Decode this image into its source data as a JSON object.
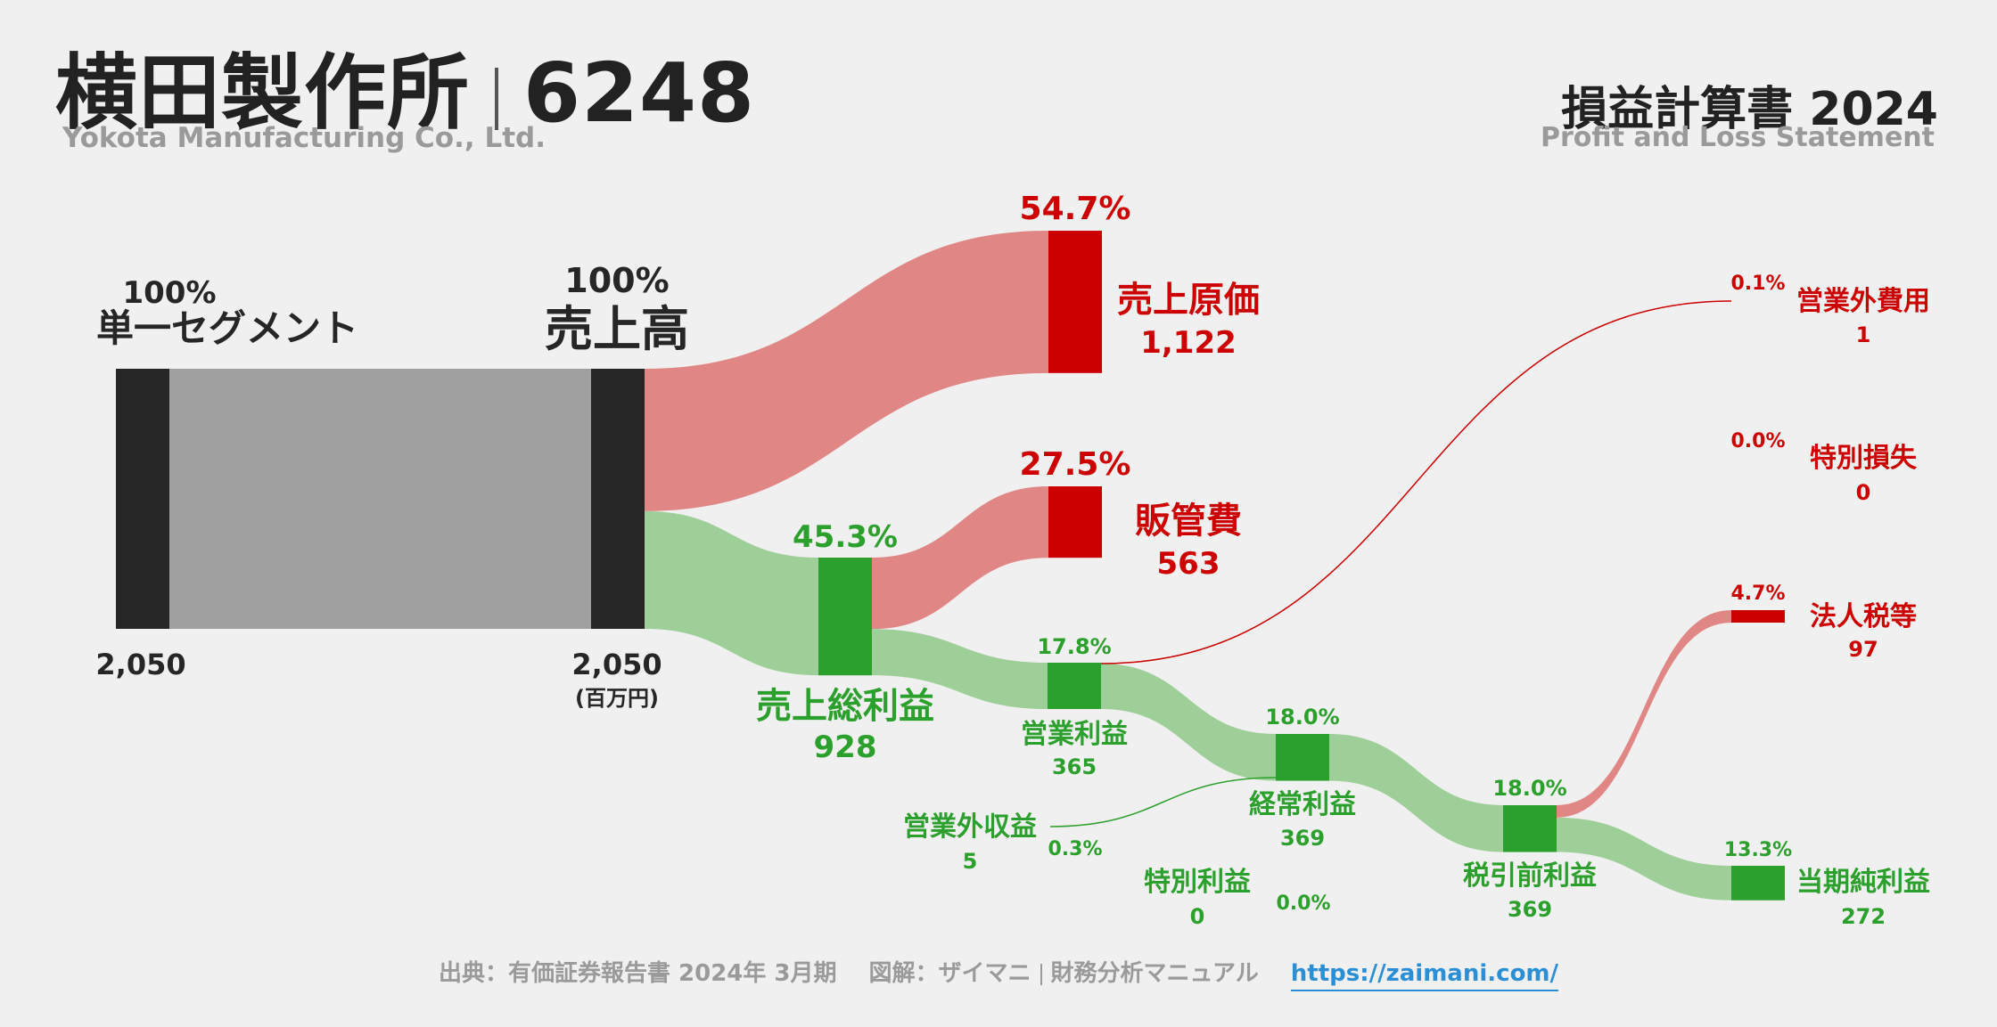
{
  "header": {
    "company_ja": "横田製作所",
    "ticker": "6248",
    "company_en": "Yokota Manufacturing Co., Ltd.",
    "statement_ja": "損益計算書 2024",
    "statement_en": "Profit and Loss Statement"
  },
  "footer": {
    "source": "出典：有価証券報告書 2024年 3月期",
    "credit_a": "図解：ザイマニ",
    "credit_b": "財務分析マニュアル",
    "url": "https://zaimani.com/"
  },
  "colors": {
    "revenue": "#262626",
    "segment_flow": "#a0a0a0",
    "cost": "#cc0000",
    "cost_flow": "#e08684",
    "profit": "#2ca02c",
    "profit_flow": "#9ecf98",
    "background": "#f0f0f0"
  },
  "chart_data": {
    "type": "sankey",
    "unit": "(百万円)",
    "nodes": [
      {
        "id": "segment",
        "label": "単一セグメント",
        "value": 2050,
        "value_text": "2,050",
        "pct": "100%",
        "kind": "revenue"
      },
      {
        "id": "revenue",
        "label": "売上高",
        "value": 2050,
        "value_text": "2,050",
        "pct": "100%",
        "kind": "revenue"
      },
      {
        "id": "cogs",
        "label": "売上原価",
        "value": 1122,
        "value_text": "1,122",
        "pct": "54.7%",
        "kind": "cost"
      },
      {
        "id": "gross",
        "label": "売上総利益",
        "value": 928,
        "value_text": "928",
        "pct": "45.3%",
        "kind": "profit"
      },
      {
        "id": "sga",
        "label": "販管費",
        "value": 563,
        "value_text": "563",
        "pct": "27.5%",
        "kind": "cost"
      },
      {
        "id": "op",
        "label": "営業利益",
        "value": 365,
        "value_text": "365",
        "pct": "17.8%",
        "kind": "profit"
      },
      {
        "id": "nonop_inc",
        "label": "営業外収益",
        "value": 5,
        "value_text": "5",
        "pct": "0.3%",
        "kind": "profit"
      },
      {
        "id": "nonop_exp",
        "label": "営業外費用",
        "value": 1,
        "value_text": "1",
        "pct": "0.1%",
        "kind": "cost"
      },
      {
        "id": "ordinary",
        "label": "経常利益",
        "value": 369,
        "value_text": "369",
        "pct": "18.0%",
        "kind": "profit"
      },
      {
        "id": "ext_inc",
        "label": "特別利益",
        "value": 0,
        "value_text": "0",
        "pct": "0.0%",
        "kind": "profit"
      },
      {
        "id": "ext_loss",
        "label": "特別損失",
        "value": 0,
        "value_text": "0",
        "pct": "0.0%",
        "kind": "cost"
      },
      {
        "id": "pretax",
        "label": "税引前利益",
        "value": 369,
        "value_text": "369",
        "pct": "18.0%",
        "kind": "profit"
      },
      {
        "id": "tax",
        "label": "法人税等",
        "value": 97,
        "value_text": "97",
        "pct": "4.7%",
        "kind": "cost"
      },
      {
        "id": "net",
        "label": "当期純利益",
        "value": 272,
        "value_text": "272",
        "pct": "13.3%",
        "kind": "profit"
      }
    ],
    "links": [
      {
        "source": "segment",
        "target": "revenue",
        "value": 2050
      },
      {
        "source": "revenue",
        "target": "cogs",
        "value": 1122
      },
      {
        "source": "revenue",
        "target": "gross",
        "value": 928
      },
      {
        "source": "gross",
        "target": "sga",
        "value": 563
      },
      {
        "source": "gross",
        "target": "op",
        "value": 365
      },
      {
        "source": "op",
        "target": "nonop_exp",
        "value": 1
      },
      {
        "source": "op",
        "target": "ordinary",
        "value": 364
      },
      {
        "source": "nonop_inc",
        "target": "ordinary",
        "value": 5
      },
      {
        "source": "ordinary",
        "target": "pretax",
        "value": 369
      },
      {
        "source": "pretax",
        "target": "tax",
        "value": 97
      },
      {
        "source": "pretax",
        "target": "net",
        "value": 272
      }
    ]
  }
}
